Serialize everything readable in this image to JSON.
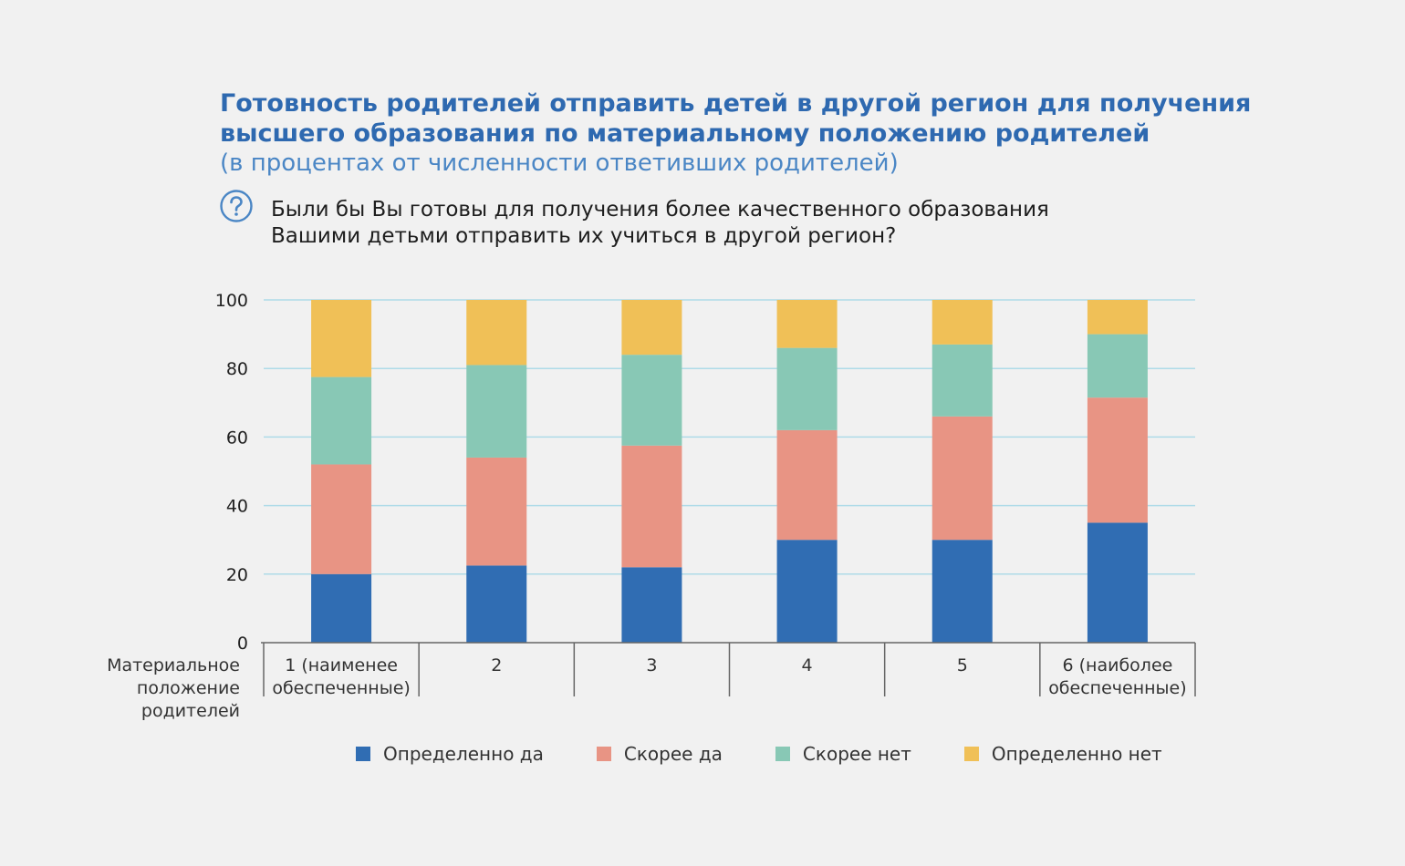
{
  "header": {
    "title_line1": "Готовность родителей отправить детей в другой регион для получения",
    "title_line2": "высшего образования по материальному положению родителей",
    "subtitle": "(в процентах от численности ответивших родителей)",
    "question_line1": "Были бы Вы готовы для получения более качественного образования",
    "question_line2": "Вашими детьми отправить их учиться в другой регион?",
    "question_icon": "question-circle-icon"
  },
  "chart_data": {
    "type": "bar",
    "stacked": true,
    "categories": [
      "1 (наименее обеспеченные)",
      "2",
      "3",
      "4",
      "5",
      "6 (наиболее обеспеченные)"
    ],
    "category_lines": [
      [
        "1 (наименее",
        "обеспеченные)"
      ],
      [
        "2"
      ],
      [
        "3"
      ],
      [
        "4"
      ],
      [
        "5"
      ],
      [
        "6 (наиболее",
        "обеспеченные)"
      ]
    ],
    "xlabel": "Материальное положение родителей",
    "xlabel_lines": [
      "Материальное",
      "положение",
      "родителей"
    ],
    "ylim": [
      0,
      100
    ],
    "yticks": [
      0,
      20,
      40,
      60,
      80,
      100
    ],
    "grid": true,
    "legend_position": "bottom",
    "series": [
      {
        "name": "Определенно да",
        "color": "#306db3",
        "values": [
          20,
          22.5,
          22,
          30,
          30,
          35
        ]
      },
      {
        "name": "Скорее да",
        "color": "#e89484",
        "values": [
          32,
          31.5,
          35.5,
          32,
          36,
          36.5
        ]
      },
      {
        "name": "Скорее нет",
        "color": "#88c8b5",
        "values": [
          25.5,
          27,
          26.5,
          24,
          21,
          18.5
        ]
      },
      {
        "name": "Определенно нет",
        "color": "#f0c057",
        "values": [
          22.5,
          19,
          16,
          14,
          13,
          10
        ]
      }
    ]
  }
}
